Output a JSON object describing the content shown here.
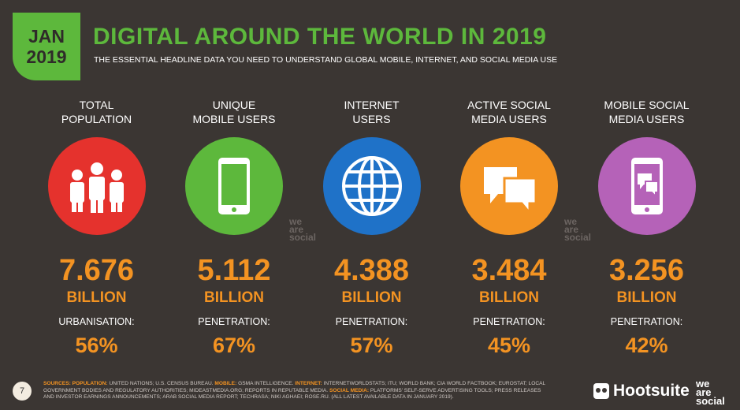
{
  "header": {
    "badge": {
      "month": "JAN",
      "year": "2019"
    },
    "title": "DIGITAL AROUND THE WORLD IN 2019",
    "subtitle": "THE ESSENTIAL HEADLINE DATA YOU NEED TO UNDERSTAND GLOBAL MOBILE, INTERNET, AND SOCIAL MEDIA USE"
  },
  "watermark": [
    "we",
    "are",
    "social"
  ],
  "columns": [
    {
      "label": [
        "TOTAL",
        "POPULATION"
      ],
      "color": "#e5322d",
      "value": "7.676",
      "unit": "BILLION",
      "sub_label": "URBANISATION:",
      "sub_value": "56%"
    },
    {
      "label": [
        "UNIQUE",
        "MOBILE USERS"
      ],
      "color": "#5db83c",
      "value": "5.112",
      "unit": "BILLION",
      "sub_label": "PENETRATION:",
      "sub_value": "67%"
    },
    {
      "label": [
        "INTERNET",
        "USERS"
      ],
      "color": "#1f72c8",
      "value": "4.388",
      "unit": "BILLION",
      "sub_label": "PENETRATION:",
      "sub_value": "57%"
    },
    {
      "label": [
        "ACTIVE SOCIAL",
        "MEDIA USERS"
      ],
      "color": "#f39322",
      "value": "3.484",
      "unit": "BILLION",
      "sub_label": "PENETRATION:",
      "sub_value": "45%"
    },
    {
      "label": [
        "MOBILE SOCIAL",
        "MEDIA USERS"
      ],
      "color": "#b562b8",
      "value": "3.256",
      "unit": "BILLION",
      "sub_label": "PENETRATION:",
      "sub_value": "42%"
    }
  ],
  "footer": {
    "page": "7",
    "sources": [
      {
        "label": "SOURCES:"
      },
      {
        "label": "POPULATION:",
        "text": "UNITED NATIONS; U.S. CENSUS BUREAU."
      },
      {
        "label": "MOBILE:",
        "text": "GSMA INTELLIGENCE."
      },
      {
        "label": "INTERNET:",
        "text": "INTERNETWORLDSTATS; ITU; WORLD BANK; CIA WORLD FACTBOOK; EUROSTAT; LOCAL GOVERNMENT BODIES AND REGULATORY AUTHORITIES; MIDEASTMEDIA.ORG; REPORTS IN REPUTABLE MEDIA."
      },
      {
        "label": "SOCIAL MEDIA:",
        "text": "PLATFORMS' SELF-SERVE ADVERTISING TOOLS; PRESS RELEASES AND INVESTOR EARNINGS ANNOUNCEMENTS; ARAB SOCIAL MEDIA REPORT; TECHRASA; NIKI AGHAEI; ROSE.RU. (ALL LATEST AVAILABLE DATA IN JANUARY 2019)."
      }
    ],
    "brand": "Hootsuite",
    "partner": [
      "we",
      "are",
      "social"
    ]
  }
}
